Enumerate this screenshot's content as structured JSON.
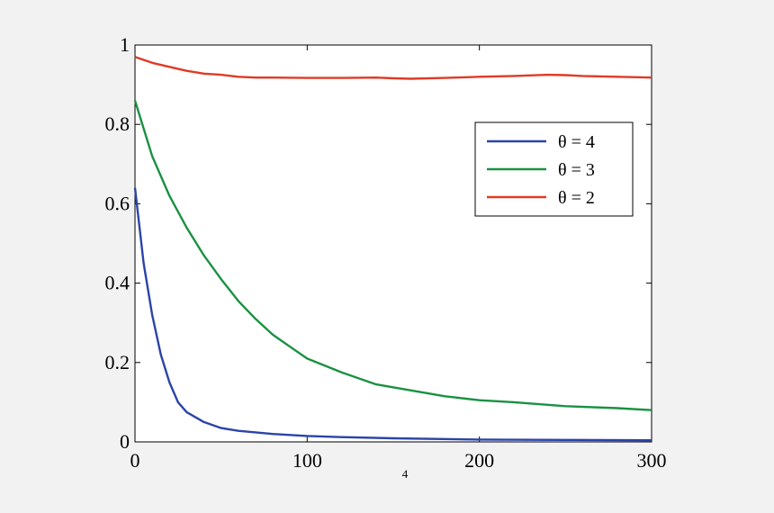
{
  "chart_data": {
    "type": "line",
    "title": "",
    "xlabel": "",
    "ylabel": "",
    "xlim": [
      0,
      300
    ],
    "ylim": [
      0,
      1
    ],
    "xticks": [
      0,
      100,
      200,
      300
    ],
    "yticks": [
      0,
      0.2,
      0.4,
      0.6,
      0.8,
      1
    ],
    "xtick_labels": [
      "0",
      "100",
      "200",
      "300"
    ],
    "ytick_labels": [
      "0",
      "0.2",
      "0.4",
      "0.6",
      "0.8",
      "1"
    ],
    "grid": false,
    "legend_position": "top-right",
    "stray_label": "4",
    "series": [
      {
        "name": "θ = 4",
        "color": "#2b44a8",
        "x": [
          0,
          5,
          10,
          15,
          20,
          25,
          30,
          40,
          50,
          60,
          80,
          100,
          120,
          150,
          200,
          250,
          300
        ],
        "y": [
          0.64,
          0.45,
          0.32,
          0.22,
          0.15,
          0.1,
          0.075,
          0.05,
          0.035,
          0.028,
          0.02,
          0.015,
          0.012,
          0.009,
          0.006,
          0.005,
          0.004
        ]
      },
      {
        "name": "θ = 3",
        "color": "#1a9142",
        "x": [
          0,
          10,
          20,
          30,
          40,
          50,
          60,
          70,
          80,
          90,
          100,
          120,
          140,
          160,
          180,
          200,
          220,
          250,
          280,
          300
        ],
        "y": [
          0.86,
          0.72,
          0.62,
          0.54,
          0.47,
          0.41,
          0.355,
          0.31,
          0.27,
          0.24,
          0.21,
          0.175,
          0.145,
          0.13,
          0.115,
          0.105,
          0.1,
          0.09,
          0.085,
          0.08
        ]
      },
      {
        "name": "θ = 2",
        "color": "#e03a26",
        "x": [
          0,
          10,
          20,
          30,
          40,
          50,
          60,
          70,
          80,
          100,
          120,
          140,
          150,
          160,
          180,
          200,
          220,
          240,
          250,
          260,
          280,
          300
        ],
        "y": [
          0.97,
          0.955,
          0.945,
          0.935,
          0.928,
          0.925,
          0.92,
          0.918,
          0.918,
          0.917,
          0.917,
          0.918,
          0.916,
          0.915,
          0.917,
          0.92,
          0.922,
          0.925,
          0.924,
          0.922,
          0.92,
          0.918
        ]
      }
    ]
  }
}
